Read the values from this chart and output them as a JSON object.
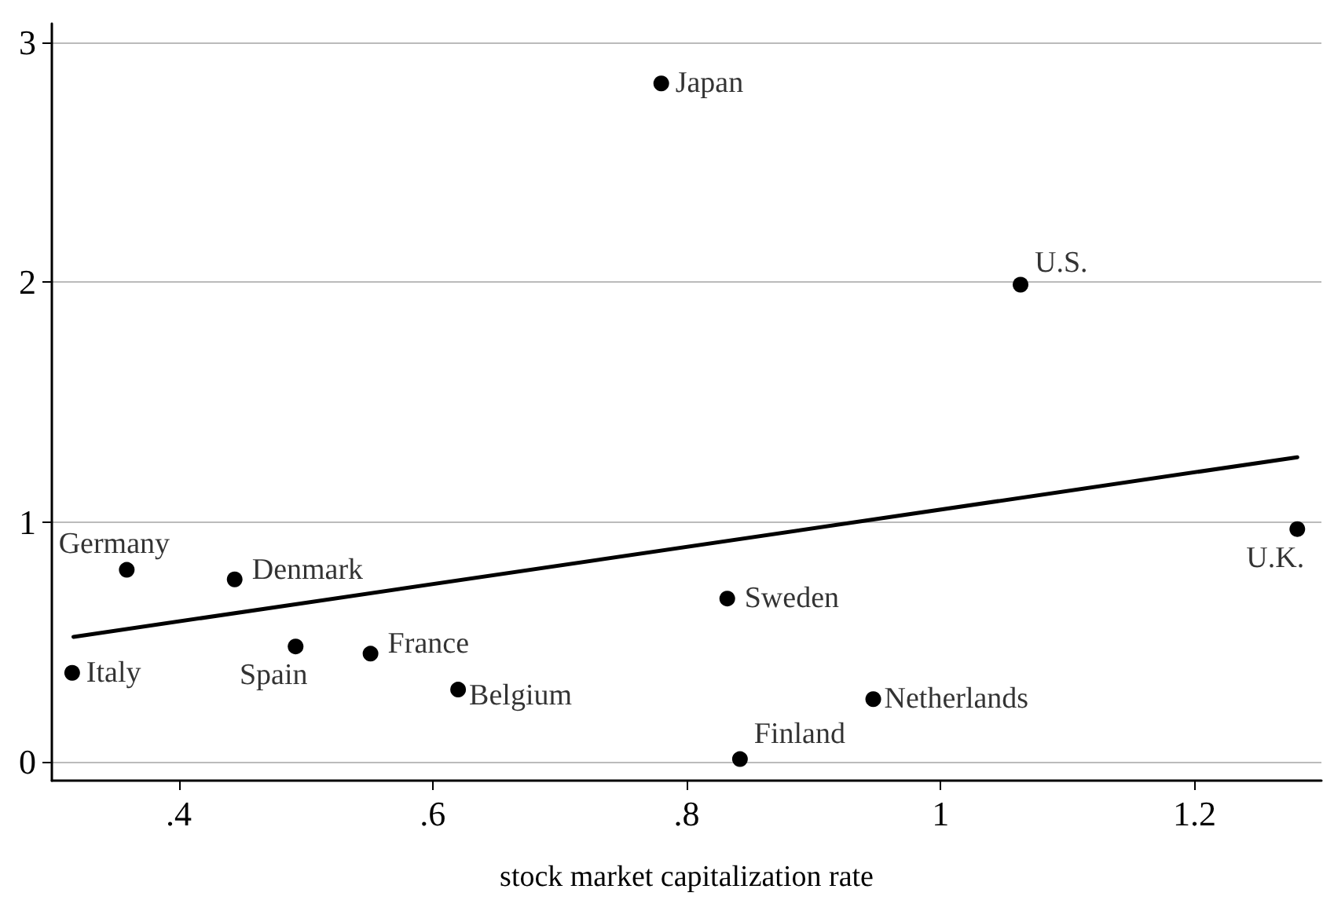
{
  "chart_data": {
    "type": "scatter",
    "xlabel": "stock market capitalization rate",
    "x": [
      0.78,
      1.063,
      1.281,
      0.359,
      0.444,
      0.832,
      0.492,
      0.551,
      0.316,
      0.62,
      0.947,
      0.842
    ],
    "series": [
      {
        "color": "#000000",
        "marker": "circle",
        "values": [
          2.83,
          1.99,
          0.97,
          0.8,
          0.76,
          0.68,
          0.48,
          0.45,
          0.37,
          0.3,
          0.26,
          0.01
        ]
      },
      {
        "type": "line",
        "color": "#000000",
        "marker": "none",
        "line_style": "solid",
        "x": [
          0.317,
          1.281
        ],
        "values": [
          0.52,
          1.27
        ]
      }
    ],
    "annotations": [
      {
        "text": "Japan",
        "x": 0.78,
        "y": 2.83
      },
      {
        "text": "U.S.",
        "x": 1.063,
        "y": 1.99
      },
      {
        "text": "U.K.",
        "x": 1.281,
        "y": 0.97
      },
      {
        "text": "Germany",
        "x": 0.359,
        "y": 0.8
      },
      {
        "text": "Denmark",
        "x": 0.444,
        "y": 0.76
      },
      {
        "text": "Sweden",
        "x": 0.832,
        "y": 0.68
      },
      {
        "text": "Spain",
        "x": 0.492,
        "y": 0.48
      },
      {
        "text": "France",
        "x": 0.551,
        "y": 0.45
      },
      {
        "text": "Italy",
        "x": 0.316,
        "y": 0.37
      },
      {
        "text": "Belgium",
        "x": 0.62,
        "y": 0.3
      },
      {
        "text": "Netherlands",
        "x": 0.947,
        "y": 0.26
      },
      {
        "text": "Finland",
        "x": 0.842,
        "y": 0.01
      }
    ],
    "xlim": [
      0.3,
      1.3
    ],
    "ylim": [
      -0.08,
      3.08
    ],
    "xticks": [
      {
        "value": 0.4,
        "label": ".4"
      },
      {
        "value": 0.6,
        "label": ".6"
      },
      {
        "value": 0.8,
        "label": ".8"
      },
      1,
      1.2
    ],
    "yticks": [
      0,
      1,
      2,
      3
    ],
    "grid": "y"
  }
}
